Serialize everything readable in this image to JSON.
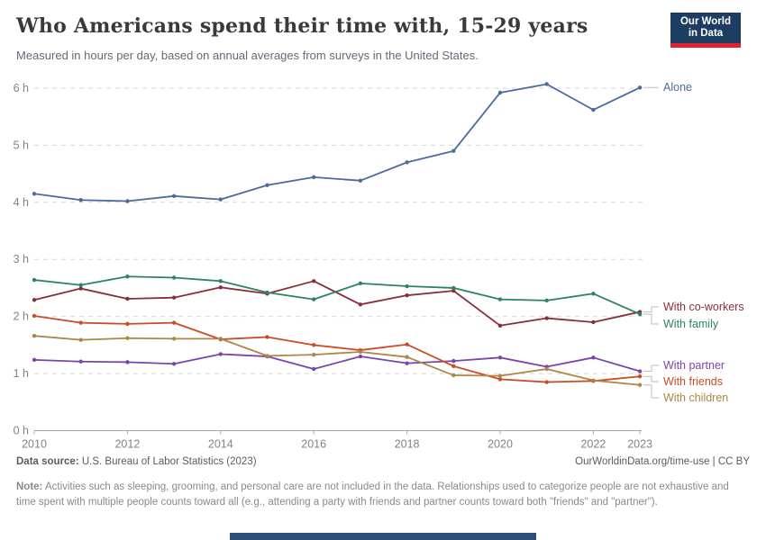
{
  "header": {
    "title": "Who Americans spend their time with, 15-29 years",
    "subtitle": "Measured in hours per day, based on annual averages from surveys in the United States.",
    "logo_line1": "Our World",
    "logo_line2": "in Data",
    "logo_bg": "#1d3d63",
    "logo_red": "#e0232e"
  },
  "chart_data": {
    "type": "line",
    "title": "Who Americans spend their time with, 15-29 years",
    "xlabel": "",
    "ylabel": "hours per day",
    "ylim": [
      0,
      6
    ],
    "grid": "dashed-horizontal",
    "legend_position": "right-end-labels",
    "x": [
      2010,
      2011,
      2012,
      2013,
      2014,
      2015,
      2016,
      2017,
      2018,
      2019,
      2020,
      2021,
      2022,
      2023
    ],
    "x_tick_labels": [
      "2010",
      "2012",
      "2014",
      "2016",
      "2018",
      "2020",
      "2022",
      "2023"
    ],
    "x_tick_years": [
      2010,
      2012,
      2014,
      2016,
      2018,
      2020,
      2022,
      2023
    ],
    "y_tick_labels": [
      "0 h",
      "1 h",
      "2 h",
      "3 h",
      "4 h",
      "5 h",
      "6 h"
    ],
    "series": [
      {
        "name": "Alone",
        "color": "#4c6a9c",
        "values": [
          4.15,
          4.04,
          4.02,
          4.11,
          4.05,
          4.3,
          4.44,
          4.38,
          4.7,
          4.9,
          5.92,
          6.07,
          5.62,
          6.01
        ]
      },
      {
        "name": "With co-workers",
        "color": "#8b2e3c",
        "values": [
          2.29,
          2.49,
          2.31,
          2.33,
          2.51,
          2.4,
          2.62,
          2.21,
          2.37,
          2.45,
          1.84,
          1.97,
          1.9,
          2.08
        ]
      },
      {
        "name": "With family",
        "color": "#2c8465",
        "values": [
          2.64,
          2.55,
          2.7,
          2.68,
          2.62,
          2.42,
          2.3,
          2.58,
          2.53,
          2.5,
          2.3,
          2.28,
          2.4,
          2.04
        ]
      },
      {
        "name": "With partner",
        "color": "#7b44ab",
        "values": [
          1.24,
          1.21,
          1.2,
          1.17,
          1.34,
          1.3,
          1.08,
          1.3,
          1.18,
          1.22,
          1.28,
          1.12,
          1.28,
          1.04
        ]
      },
      {
        "name": "With friends",
        "color": "#cb4a27",
        "values": [
          2.01,
          1.89,
          1.87,
          1.89,
          1.6,
          1.64,
          1.5,
          1.41,
          1.51,
          1.13,
          0.9,
          0.85,
          0.87,
          0.95
        ]
      },
      {
        "name": "With children",
        "color": "#ac8747",
        "values": [
          1.66,
          1.59,
          1.62,
          1.61,
          1.61,
          1.31,
          1.33,
          1.38,
          1.29,
          0.97,
          0.96,
          1.08,
          0.88,
          0.8
        ]
      }
    ]
  },
  "footer": {
    "datasource_label": "Data source:",
    "datasource_value": " U.S. Bureau of Labor Statistics (2023)",
    "link": "OurWorldinData.org/time-use | CC BY",
    "note_label": "Note:",
    "note_value": " Activities such as sleeping, grooming, and personal care are not included in the data. Relationships used to categorize people are not exhaustive and time spent with multiple people counts toward all (e.g., attending a party with friends and partner counts toward both \"friends\" and \"partner\")."
  }
}
